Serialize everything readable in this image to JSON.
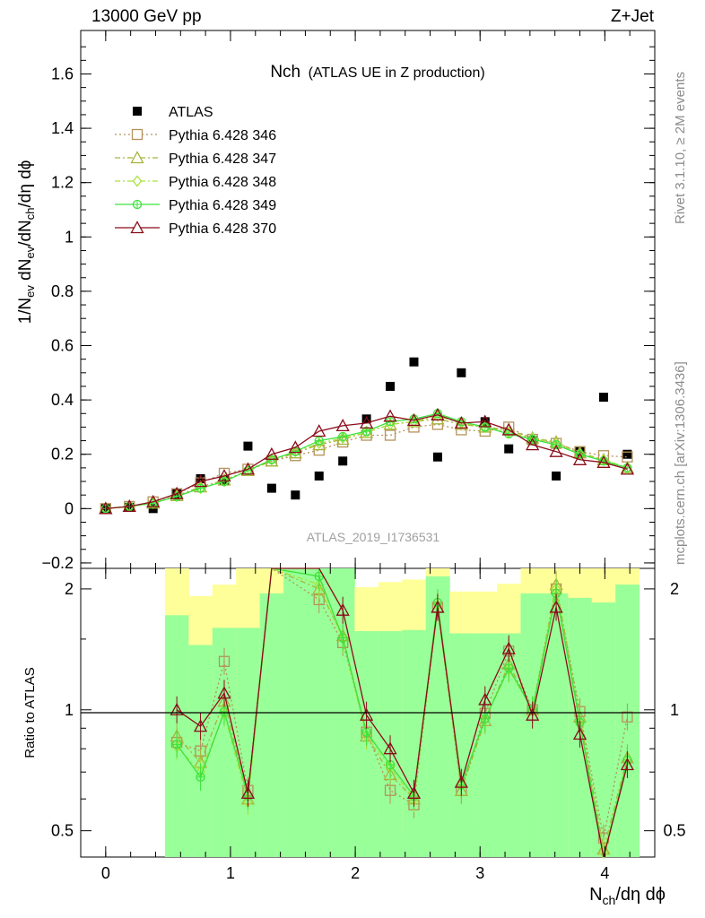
{
  "header": {
    "left": "13000 GeV pp",
    "right": "Z+Jet",
    "title_main": "Nch",
    "title_sub": "(ATLAS UE in Z production)",
    "watermark": "ATLAS_2019_I1736531",
    "side_rivet": "Rivet 3.1.10, ≥ 2M events",
    "side_mcplots": "mcplots.cern.ch [arXiv:1306.3436]"
  },
  "axes": {
    "ylabel_top": "1/N_ev dN_ev/dN_ch/dη dϕ",
    "ylabel_bottom": "Ratio to ATLAS",
    "xlabel": "N_ch/dη dϕ"
  },
  "chart_data": [
    {
      "type": "scatter",
      "panel": "main",
      "xlim": [
        -0.2,
        4.4
      ],
      "ylim": [
        -0.22,
        1.76
      ],
      "xticks": [
        0,
        1,
        2,
        3,
        4
      ],
      "yticks": [
        -0.2,
        0,
        0.2,
        0.4,
        0.6,
        0.8,
        1,
        1.2,
        1.4,
        1.6
      ],
      "ytick_labels": [
        "−0.2",
        "0",
        "0.2",
        "0.4",
        "0.6",
        "0.8",
        "1",
        "1.2",
        "1.4",
        "1.6"
      ],
      "legend_position": "top-left",
      "x": [
        0.0,
        0.19,
        0.38,
        0.57,
        0.76,
        0.95,
        1.14,
        1.33,
        1.52,
        1.71,
        1.9,
        2.09,
        2.28,
        2.47,
        2.66,
        2.85,
        3.04,
        3.23,
        3.42,
        3.61,
        3.8,
        3.99,
        4.18
      ],
      "series": [
        {
          "name": "ATLAS",
          "color": "#000000",
          "marker": "filled-square",
          "values": [
            0.0,
            0.005,
            0.0,
            0.055,
            0.11,
            0.105,
            0.23,
            0.075,
            0.05,
            0.12,
            0.175,
            0.33,
            0.45,
            0.54,
            0.19,
            0.5,
            0.32,
            0.22,
            0.25,
            0.12,
            0.21,
            0.41,
            0.2
          ]
        },
        {
          "name": "Pythia 6.428 346",
          "color": "#b5925a",
          "marker": "open-square",
          "line": "dotted",
          "values": [
            0.0,
            0.008,
            0.025,
            0.055,
            0.095,
            0.13,
            0.145,
            0.175,
            0.195,
            0.215,
            0.245,
            0.27,
            0.27,
            0.3,
            0.31,
            0.29,
            0.285,
            0.3,
            0.255,
            0.24,
            0.21,
            0.195,
            0.19
          ]
        },
        {
          "name": "Pythia 6.428 347",
          "color": "#a8b43c",
          "marker": "open-triangle",
          "line": "dashdot",
          "values": [
            0.0,
            0.008,
            0.02,
            0.048,
            0.08,
            0.105,
            0.14,
            0.175,
            0.205,
            0.235,
            0.255,
            0.28,
            0.31,
            0.32,
            0.33,
            0.31,
            0.3,
            0.29,
            0.26,
            0.245,
            0.205,
            0.18,
            0.15
          ]
        },
        {
          "name": "Pythia 6.428 348",
          "color": "#a6e23c",
          "marker": "open-diamond",
          "line": "dashdot",
          "values": [
            0.0,
            0.008,
            0.02,
            0.045,
            0.075,
            0.1,
            0.14,
            0.18,
            0.21,
            0.24,
            0.26,
            0.28,
            0.31,
            0.32,
            0.34,
            0.315,
            0.3,
            0.28,
            0.26,
            0.24,
            0.2,
            0.18,
            0.15
          ]
        },
        {
          "name": "Pythia 6.428 349",
          "color": "#3ce23c",
          "marker": "open-circle-cross",
          "line": "solid",
          "values": [
            0.0,
            0.008,
            0.02,
            0.045,
            0.075,
            0.1,
            0.14,
            0.18,
            0.21,
            0.25,
            0.265,
            0.285,
            0.32,
            0.33,
            0.35,
            0.32,
            0.3,
            0.275,
            0.255,
            0.235,
            0.2,
            0.175,
            0.15
          ]
        },
        {
          "name": "Pythia 6.428 370",
          "color": "#8b0c1a",
          "marker": "open-triangle",
          "line": "solid",
          "values": [
            0.0,
            0.008,
            0.025,
            0.055,
            0.1,
            0.12,
            0.145,
            0.2,
            0.225,
            0.285,
            0.305,
            0.315,
            0.34,
            0.325,
            0.345,
            0.315,
            0.32,
            0.29,
            0.235,
            0.21,
            0.18,
            0.17,
            0.145
          ]
        }
      ]
    },
    {
      "type": "line",
      "panel": "ratio",
      "xlim": [
        -0.2,
        4.4
      ],
      "ylim": [
        0.43,
        2.25
      ],
      "scale": "log",
      "yticks": [
        0.5,
        1,
        2
      ],
      "ytick_labels": [
        "0.5",
        "1",
        "2"
      ],
      "x": [
        0.57,
        0.76,
        0.95,
        1.14,
        1.33,
        1.71,
        1.9,
        2.09,
        2.28,
        2.47,
        2.66,
        2.85,
        3.04,
        3.23,
        3.42,
        3.61,
        3.8,
        3.99,
        4.18
      ],
      "bands": {
        "bins": [
          0.475,
          0.665,
          0.855,
          1.045,
          1.235,
          1.425,
          1.615,
          1.805,
          1.995,
          2.185,
          2.375,
          2.565,
          2.755,
          2.945,
          3.135,
          3.325,
          3.515,
          3.705,
          3.895,
          4.085,
          4.275
        ],
        "yellow_low": [
          0.43,
          0.57,
          0.43,
          0.66,
          0.43,
          0.43,
          0.43,
          0.43,
          0.57,
          0.53,
          0.49,
          0.56,
          0.52,
          0.52,
          0.5,
          0.43,
          0.43,
          0.43,
          0.43,
          0.43
        ],
        "yellow_high": [
          2.25,
          1.92,
          2.05,
          2.25,
          2.25,
          2.25,
          2.25,
          2.25,
          2.02,
          2.08,
          2.11,
          2.25,
          1.97,
          1.97,
          2.06,
          2.25,
          2.25,
          2.25,
          2.25,
          2.25
        ],
        "green_low": [
          0.43,
          0.43,
          0.43,
          0.43,
          0.43,
          0.43,
          0.43,
          0.43,
          0.43,
          0.43,
          0.43,
          0.43,
          0.43,
          0.43,
          0.43,
          0.43,
          0.43,
          0.43,
          0.43,
          0.43
        ],
        "green_high": [
          1.72,
          1.45,
          1.6,
          1.6,
          1.95,
          2.25,
          2.25,
          2.25,
          1.57,
          1.57,
          1.58,
          2.15,
          1.55,
          1.55,
          1.55,
          1.95,
          1.95,
          1.9,
          1.85,
          2.05
        ]
      },
      "series": [
        {
          "name": "Pythia 6.428 346",
          "color": "#b5925a",
          "values": [
            0.83,
            0.79,
            1.32,
            0.63,
            2.25,
            1.88,
            1.47,
            0.88,
            0.63,
            0.58,
            1.8,
            0.63,
            0.98,
            1.4,
            1.0,
            2.0,
            0.99,
            0.48,
            0.96
          ]
        },
        {
          "name": "Pythia 6.428 347",
          "color": "#a8b43c",
          "values": [
            0.86,
            0.74,
            1.05,
            0.6,
            2.25,
            2.0,
            1.53,
            0.86,
            0.69,
            0.6,
            1.8,
            0.63,
            0.94,
            1.3,
            1.0,
            2.05,
            0.96,
            0.45,
            0.76
          ]
        },
        {
          "name": "Pythia 6.428 348",
          "color": "#a6e23c",
          "values": [
            0.81,
            0.7,
            0.98,
            0.59,
            2.25,
            2.05,
            1.5,
            0.86,
            0.72,
            0.6,
            1.82,
            0.65,
            0.95,
            1.26,
            1.0,
            2.0,
            0.93,
            0.44,
            0.75
          ]
        },
        {
          "name": "Pythia 6.428 349",
          "color": "#3ce23c",
          "values": [
            0.82,
            0.68,
            0.99,
            0.61,
            2.25,
            2.15,
            1.51,
            0.88,
            0.73,
            0.61,
            1.85,
            0.65,
            0.95,
            1.27,
            1.0,
            1.95,
            0.93,
            0.43,
            0.75
          ]
        },
        {
          "name": "Pythia 6.428 370",
          "color": "#8b0c1a",
          "values": [
            1.0,
            0.91,
            1.1,
            0.62,
            2.25,
            2.3,
            1.77,
            0.97,
            0.8,
            0.62,
            1.8,
            0.66,
            1.06,
            1.42,
            0.97,
            1.8,
            0.87,
            0.42,
            0.73
          ]
        }
      ]
    }
  ]
}
